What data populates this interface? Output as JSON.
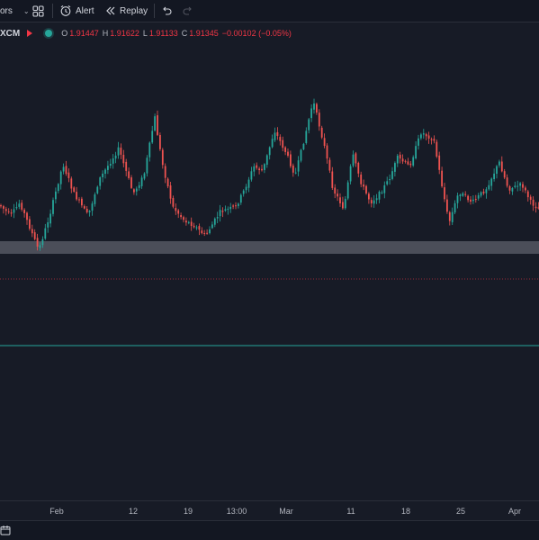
{
  "toolbar": {
    "indicators_label": "ors",
    "alert_label": "Alert",
    "replay_label": "Replay"
  },
  "legend": {
    "symbol": "XCM",
    "open_label": "O",
    "open": "1.91447",
    "high_label": "H",
    "high": "1.91622",
    "low_label": "L",
    "low": "1.91133",
    "close_label": "C",
    "close": "1.91345",
    "change": "−0.00102 (−0.05%)"
  },
  "time_axis": {
    "ticks": [
      "Feb",
      "12",
      "19",
      "13:00",
      "Mar",
      "11",
      "18",
      "25",
      "Apr"
    ]
  },
  "colors": {
    "up": "#26a69a",
    "down": "#ef5350",
    "background": "#171b26",
    "zone": "#5d606b",
    "hline_red": "#f23645",
    "hline_green": "#26a69a"
  },
  "chart_data": {
    "type": "candlestick",
    "x": [
      "Feb",
      "12",
      "19",
      "13:00",
      "Mar",
      "11",
      "18",
      "25",
      "Apr"
    ],
    "path": [
      [
        0,
        228
      ],
      [
        12,
        240
      ],
      [
        22,
        225
      ],
      [
        32,
        250
      ],
      [
        43,
        278
      ],
      [
        55,
        240
      ],
      [
        70,
        182
      ],
      [
        82,
        215
      ],
      [
        98,
        240
      ],
      [
        110,
        200
      ],
      [
        132,
        165
      ],
      [
        148,
        215
      ],
      [
        160,
        195
      ],
      [
        172,
        130
      ],
      [
        180,
        180
      ],
      [
        192,
        230
      ],
      [
        205,
        245
      ],
      [
        215,
        250
      ],
      [
        228,
        262
      ],
      [
        245,
        235
      ],
      [
        262,
        230
      ],
      [
        272,
        210
      ],
      [
        282,
        185
      ],
      [
        292,
        190
      ],
      [
        305,
        145
      ],
      [
        318,
        170
      ],
      [
        328,
        195
      ],
      [
        338,
        155
      ],
      [
        348,
        112
      ],
      [
        360,
        160
      ],
      [
        370,
        210
      ],
      [
        382,
        232
      ],
      [
        392,
        172
      ],
      [
        402,
        205
      ],
      [
        412,
        225
      ],
      [
        422,
        215
      ],
      [
        432,
        200
      ],
      [
        442,
        175
      ],
      [
        455,
        185
      ],
      [
        468,
        147
      ],
      [
        482,
        155
      ],
      [
        490,
        200
      ],
      [
        499,
        248
      ],
      [
        510,
        213
      ],
      [
        525,
        225
      ],
      [
        540,
        210
      ],
      [
        555,
        180
      ],
      [
        565,
        210
      ],
      [
        580,
        205
      ],
      [
        590,
        225
      ],
      [
        599,
        232
      ]
    ],
    "support_zone": "price band shown as grey horizontal zone",
    "hlines": [
      "red dotted line",
      "green line"
    ]
  }
}
